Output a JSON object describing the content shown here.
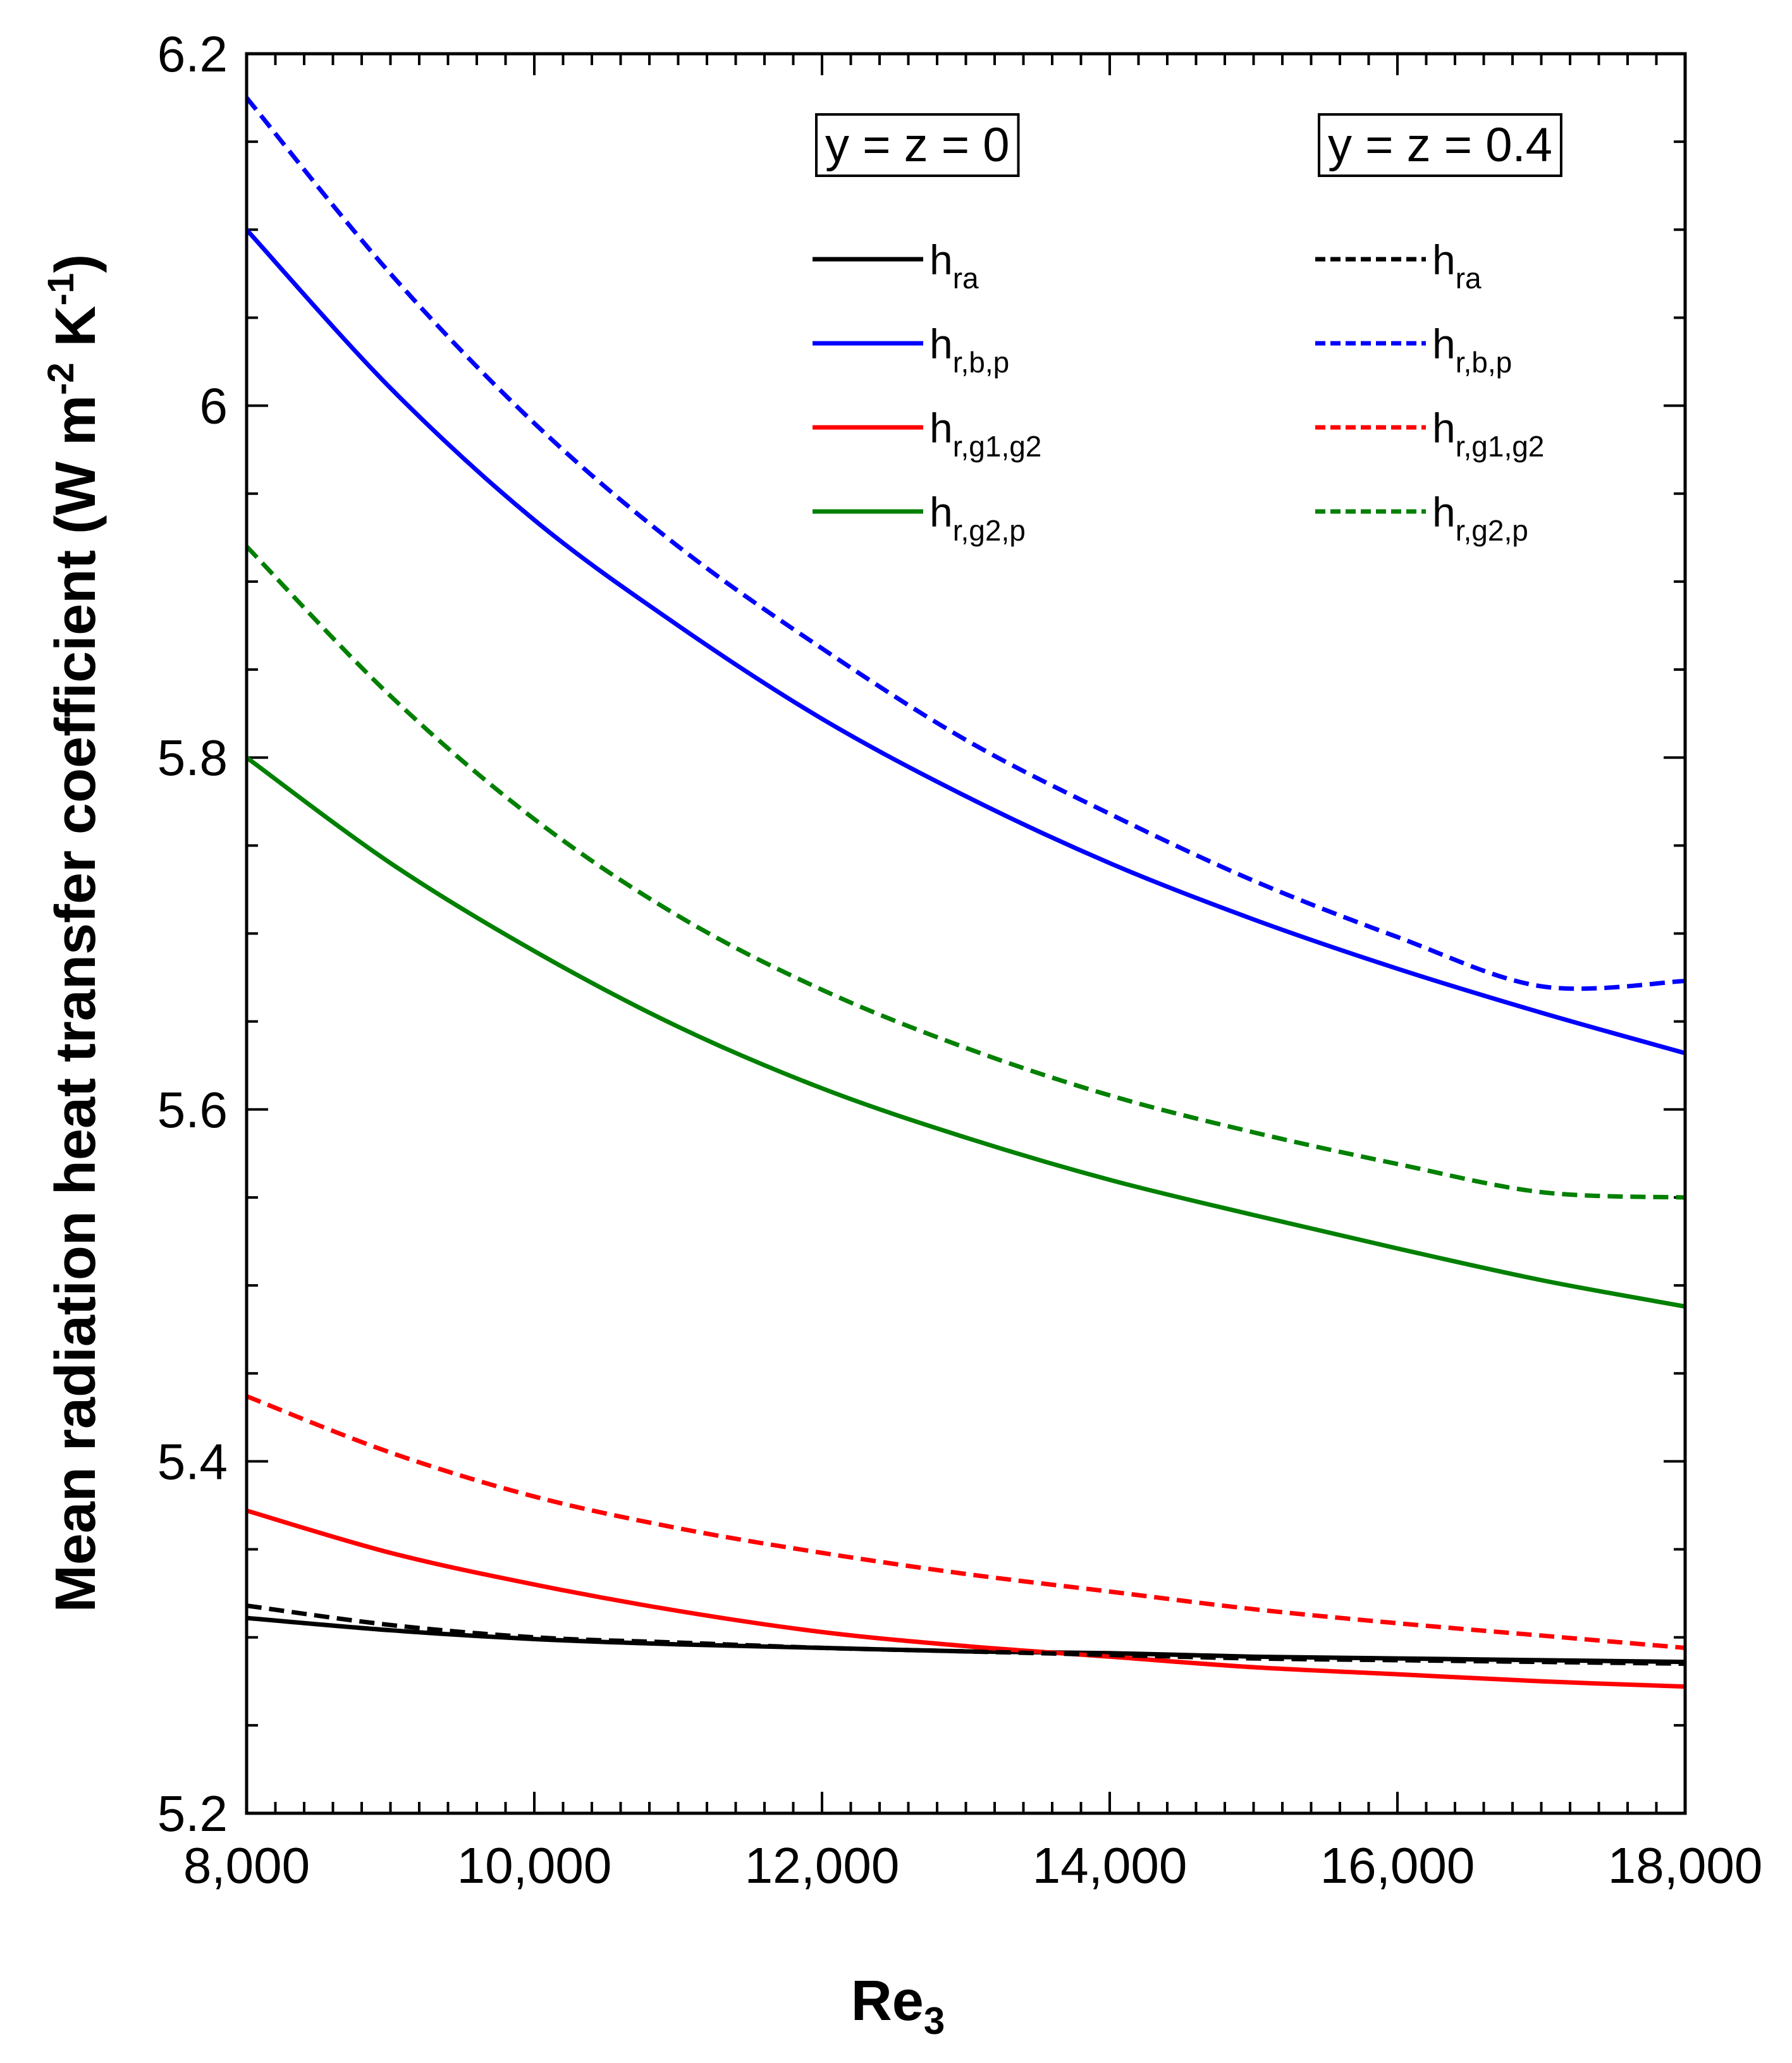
{
  "chart_data": {
    "type": "line",
    "xlabel": "Re",
    "xlabel_sub": "3",
    "ylabel": "Mean radiation heat transfer coefficient (W m",
    "ylabel_parts": [
      "Mean radiation heat transfer coefficient (W m",
      "-2",
      " K",
      "-1",
      ")"
    ],
    "xlim": [
      8000,
      18000
    ],
    "ylim": [
      5.2,
      6.2
    ],
    "xticks": [
      8000,
      10000,
      12000,
      14000,
      16000,
      18000
    ],
    "xtick_labels": [
      "8,000",
      "10,000",
      "12,000",
      "14,000",
      "16,000",
      "18,000"
    ],
    "yticks": [
      5.2,
      5.4,
      5.6,
      5.8,
      6.0,
      6.2
    ],
    "ytick_labels": [
      "5.2",
      "5.4",
      "5.6",
      "5.8",
      "6",
      "6.2"
    ],
    "legend_groups": [
      {
        "header": "y = z = 0",
        "style": "solid"
      },
      {
        "header": "y = z = 0.4",
        "style": "dashed"
      }
    ],
    "x": [
      8000,
      9000,
      10000,
      11000,
      12000,
      13000,
      14000,
      15000,
      16000,
      17000,
      18000
    ],
    "series": [
      {
        "name": "h",
        "sub": "ra",
        "group": 0,
        "color": "#000000",
        "dash": "solid",
        "values": [
          5.311,
          5.304,
          5.299,
          5.296,
          5.294,
          5.292,
          5.291,
          5.289,
          5.288,
          5.287,
          5.286
        ]
      },
      {
        "name": "h",
        "sub": "r,b,p",
        "group": 0,
        "color": "#0000ff",
        "dash": "solid",
        "values": [
          6.1,
          6.01,
          5.935,
          5.875,
          5.822,
          5.778,
          5.74,
          5.708,
          5.68,
          5.655,
          5.632
        ]
      },
      {
        "name": "h",
        "sub": "r,g1,g2",
        "group": 0,
        "color": "#ff0000",
        "dash": "solid",
        "values": [
          5.372,
          5.348,
          5.33,
          5.315,
          5.303,
          5.295,
          5.289,
          5.283,
          5.279,
          5.275,
          5.272
        ]
      },
      {
        "name": "h",
        "sub": "r,g2,p",
        "group": 0,
        "color": "#008000",
        "dash": "solid",
        "values": [
          5.8,
          5.74,
          5.69,
          5.647,
          5.612,
          5.584,
          5.56,
          5.54,
          5.521,
          5.503,
          5.488
        ]
      },
      {
        "name": "h",
        "sub": "ra",
        "group": 1,
        "color": "#000000",
        "dash": "dashed",
        "values": [
          5.318,
          5.307,
          5.3,
          5.297,
          5.294,
          5.292,
          5.29,
          5.288,
          5.287,
          5.286,
          5.285
        ]
      },
      {
        "name": "h",
        "sub": "r,b,p",
        "group": 1,
        "color": "#0000ff",
        "dash": "dashed",
        "values": [
          6.175,
          6.075,
          5.99,
          5.92,
          5.862,
          5.81,
          5.768,
          5.73,
          5.698,
          5.67,
          5.673
        ]
      },
      {
        "name": "h",
        "sub": "r,g1,g2",
        "group": 1,
        "color": "#ff0000",
        "dash": "dashed",
        "values": [
          5.437,
          5.405,
          5.38,
          5.362,
          5.348,
          5.336,
          5.326,
          5.316,
          5.308,
          5.301,
          5.294
        ]
      },
      {
        "name": "h",
        "sub": "r,g2,p",
        "group": 1,
        "color": "#008000",
        "dash": "dashed",
        "values": [
          5.92,
          5.835,
          5.765,
          5.71,
          5.668,
          5.635,
          5.608,
          5.587,
          5.569,
          5.553,
          5.55
        ]
      }
    ]
  }
}
